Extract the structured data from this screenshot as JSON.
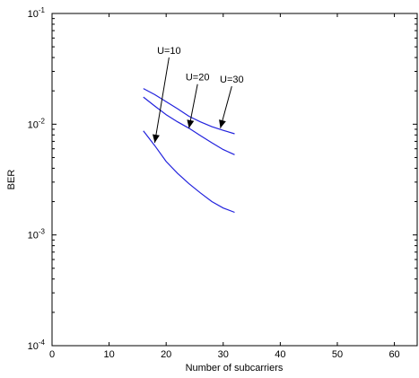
{
  "chart_data": {
    "type": "line",
    "title": "",
    "xlabel": "Number of subcarriers",
    "ylabel": "BER",
    "xlim": [
      0,
      64
    ],
    "ylim": [
      0.0001,
      0.1
    ],
    "yscale": "log",
    "grid": false,
    "x_ticks": [
      0,
      10,
      20,
      30,
      40,
      50,
      60
    ],
    "x_tick_labels": [
      "0",
      "10",
      "20",
      "30",
      "40",
      "50",
      "60"
    ],
    "y_ticks": [
      0.0001,
      0.001,
      0.01,
      0.1
    ],
    "y_tick_labels": [
      {
        "base": "10",
        "exp": "-4"
      },
      {
        "base": "10",
        "exp": "-3"
      },
      {
        "base": "10",
        "exp": "-2"
      },
      {
        "base": "10",
        "exp": "-1"
      }
    ],
    "line_color": "#2222dd",
    "series": [
      {
        "name": "U=10",
        "x": [
          16,
          18,
          20,
          22,
          24,
          26,
          28,
          30,
          32
        ],
        "y": [
          0.0087,
          0.0064,
          0.0046,
          0.0036,
          0.0029,
          0.0024,
          0.002,
          0.00175,
          0.0016
        ]
      },
      {
        "name": "U=20",
        "x": [
          16,
          18,
          20,
          22,
          24,
          26,
          28,
          30,
          32
        ],
        "y": [
          0.0176,
          0.0146,
          0.0122,
          0.0105,
          0.0092,
          0.0079,
          0.0068,
          0.0059,
          0.0053
        ]
      },
      {
        "name": "U=30",
        "x": [
          16,
          18,
          20,
          22,
          24,
          26,
          28,
          30,
          32
        ],
        "y": [
          0.021,
          0.0185,
          0.016,
          0.0138,
          0.0118,
          0.0105,
          0.0095,
          0.0088,
          0.0082
        ]
      }
    ],
    "annotations": [
      {
        "text": "U=10",
        "from": [
          20.5,
          0.04
        ],
        "to": [
          18,
          0.0068
        ]
      },
      {
        "text": "U=20",
        "from": [
          25.5,
          0.023
        ],
        "to": [
          24,
          0.0092
        ]
      },
      {
        "text": "U=30",
        "from": [
          31.5,
          0.022
        ],
        "to": [
          29.5,
          0.0092
        ]
      }
    ]
  }
}
